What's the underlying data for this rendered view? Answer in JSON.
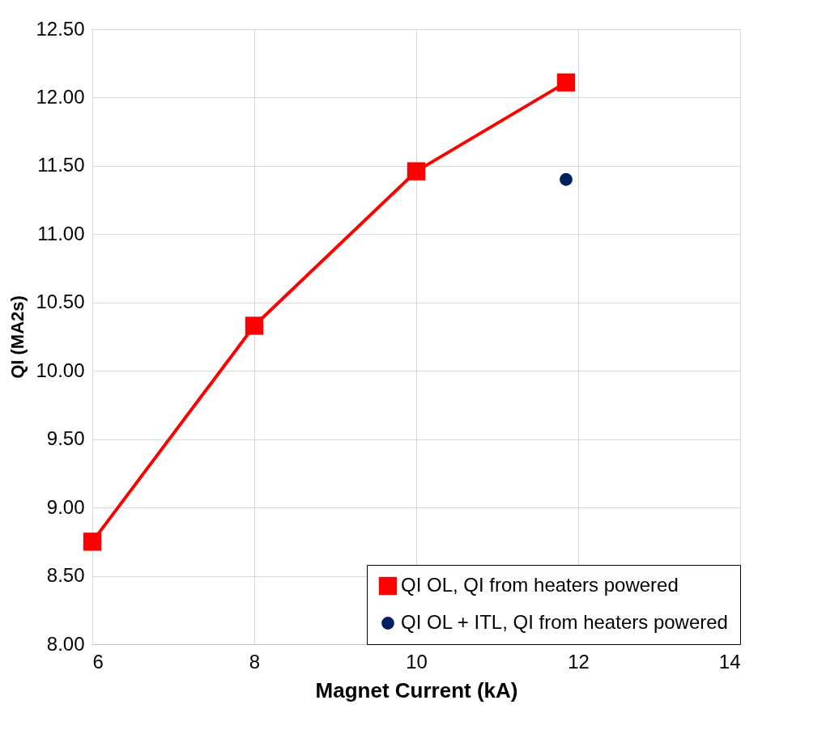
{
  "chart_data": {
    "type": "line",
    "xlabel": "Magnet Current (kA)",
    "ylabel": "QI (MA2s)",
    "xlim": [
      6,
      14
    ],
    "xticks": [
      6,
      8,
      10,
      12,
      14
    ],
    "ylim": [
      8.0,
      12.5
    ],
    "yticks": [
      {
        "value": 8,
        "label": "8.00"
      },
      {
        "value": 8.5,
        "label": "8.50"
      },
      {
        "value": 9,
        "label": "9.00"
      },
      {
        "value": 9.5,
        "label": "9.50"
      },
      {
        "value": 10,
        "label": "10.00"
      },
      {
        "value": 10.5,
        "label": "10.50"
      },
      {
        "value": 11,
        "label": "11.00"
      },
      {
        "value": 11.5,
        "label": "11.50"
      },
      {
        "value": 12,
        "label": "12.00"
      },
      {
        "value": 12.5,
        "label": "12.50"
      }
    ],
    "grid": true,
    "legend": "bottom right",
    "line_style": "solid",
    "series": [
      {
        "name": "QI OL, QI from heaters powered",
        "type": "line",
        "marker": "square",
        "color": "#ff0000",
        "x": [
          6,
          8,
          10,
          11.85
        ],
        "values": [
          8.75,
          10.33,
          11.46,
          12.11
        ]
      },
      {
        "name": "QI OL + ITL, QI from heaters powered",
        "type": "scatter",
        "marker": "circle",
        "color": "#002060",
        "x": [
          11.85
        ],
        "values": [
          11.4
        ]
      }
    ]
  }
}
